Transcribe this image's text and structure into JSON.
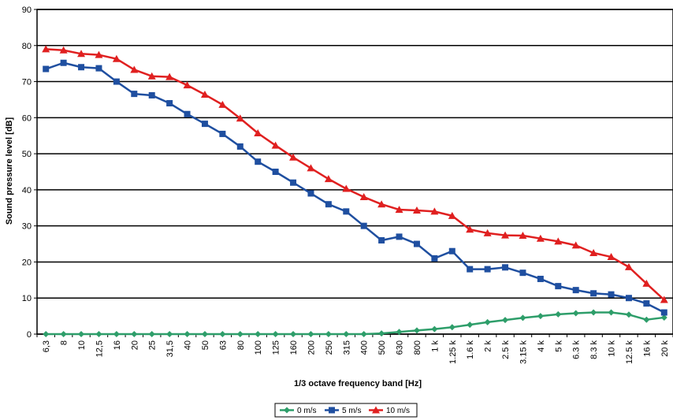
{
  "chart_data": {
    "type": "line",
    "title": "",
    "xlabel": "1/3 octave frequency band [Hz]",
    "ylabel": "Sound pressure level [dB]",
    "ylim": [
      0,
      90
    ],
    "yticks": [
      0,
      10,
      20,
      30,
      40,
      50,
      60,
      70,
      80,
      90
    ],
    "grid": "horizontal",
    "legend": "bottom",
    "categories": [
      "6,3",
      "8",
      "10",
      "12,5",
      "16",
      "20",
      "25",
      "31,5",
      "40",
      "50",
      "63",
      "80",
      "100",
      "125",
      "160",
      "200",
      "250",
      "315",
      "400",
      "500",
      "630",
      "800",
      "1 k",
      "1.25 k",
      "1.6 k",
      "2 k",
      "2.5 k",
      "3.15 k",
      "4 k",
      "5 k",
      "6.3 k",
      "8.3 k",
      "10 k",
      "12.5 k",
      "16 k",
      "20 k"
    ],
    "series": [
      {
        "name": "0 m/s",
        "color": "#2e9e6a",
        "marker": "diamond",
        "values": [
          0,
          0,
          0,
          0,
          0,
          0,
          0,
          0,
          0,
          0,
          0,
          0,
          0,
          0,
          0,
          0,
          0,
          0,
          0,
          0.2,
          0.6,
          1.0,
          1.4,
          1.9,
          2.6,
          3.3,
          3.9,
          4.5,
          5.0,
          5.5,
          5.8,
          6.0,
          6.0,
          5.4,
          4.0,
          4.6
        ]
      },
      {
        "name": "5 m/s",
        "color": "#1f4fa0",
        "marker": "square",
        "values": [
          73.5,
          75.2,
          74.0,
          73.7,
          70.0,
          66.6,
          66.2,
          64.0,
          61.0,
          58.3,
          55.5,
          52.0,
          47.8,
          45.0,
          42.0,
          39.0,
          36.0,
          34.0,
          30.0,
          26.0,
          27.0,
          25.0,
          21.0,
          23.0,
          18.0,
          18.0,
          18.5,
          17.0,
          15.3,
          13.3,
          12.2,
          11.3,
          11.0,
          10.0,
          8.5,
          6.0
        ]
      },
      {
        "name": "10 m/s",
        "color": "#e02020",
        "marker": "triangle",
        "values": [
          79.0,
          78.7,
          77.7,
          77.4,
          76.3,
          73.3,
          71.5,
          71.3,
          69.0,
          66.4,
          63.6,
          59.8,
          55.7,
          52.3,
          49.0,
          46.0,
          43.0,
          40.3,
          38.0,
          36.0,
          34.5,
          34.3,
          34.0,
          32.8,
          29.0,
          28.0,
          27.4,
          27.3,
          26.5,
          25.7,
          24.6,
          22.5,
          21.4,
          18.6,
          14.0,
          9.5
        ]
      }
    ]
  }
}
